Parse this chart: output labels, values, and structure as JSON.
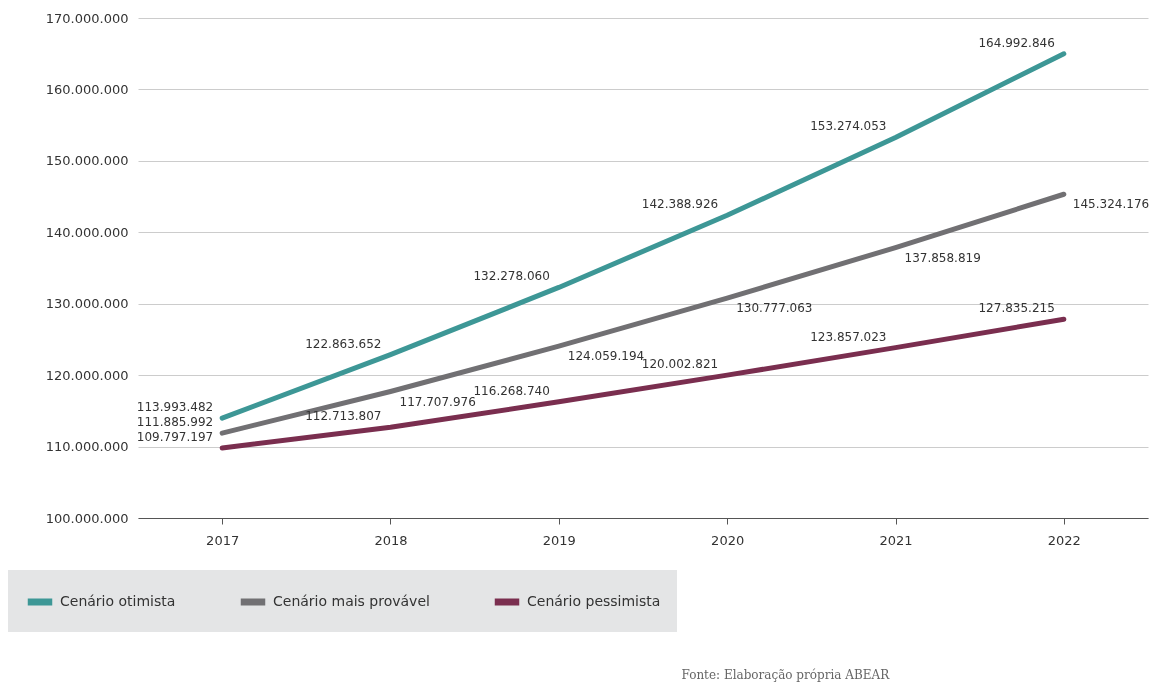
{
  "chart_data": {
    "type": "line",
    "categories": [
      "2017",
      "2018",
      "2019",
      "2020",
      "2021",
      "2022"
    ],
    "series": [
      {
        "name": "Cenário otimista",
        "color": "#3d9796",
        "values": [
          113993482,
          122863652,
          132278060,
          142388926,
          153274053,
          164992846
        ],
        "value_labels": [
          "113.993.482",
          "122.863.652",
          "132.278.060",
          "142.388.926",
          "153.274.053",
          "164.992.846"
        ]
      },
      {
        "name": "Cenário mais provável",
        "color": "#717073",
        "values": [
          111885992,
          117707976,
          124059194,
          130777063,
          137858819,
          145324176
        ],
        "value_labels": [
          "111.885.992",
          "117.707.976",
          "124.059.194",
          "130.777.063",
          "137.858.819",
          "145.324.176"
        ]
      },
      {
        "name": "Cenário pessimista",
        "color": "#7a2e4f",
        "values": [
          109797197,
          112713807,
          116268740,
          120002821,
          123857023,
          127835215
        ],
        "value_labels": [
          "109.797.197",
          "112.713.807",
          "116.268.740",
          "120.002.821",
          "123.857.023",
          "127.835.215"
        ]
      }
    ],
    "ylim": [
      100000000,
      170000000
    ],
    "yticks": [
      {
        "value": 100000000,
        "label": "100.000.000"
      },
      {
        "value": 110000000,
        "label": "110.000.000"
      },
      {
        "value": 120000000,
        "label": "120.000.000"
      },
      {
        "value": 130000000,
        "label": "130.000.000"
      },
      {
        "value": 140000000,
        "label": "140.000.000"
      },
      {
        "value": 150000000,
        "label": "150.000.000"
      },
      {
        "value": 160000000,
        "label": "160.000.000"
      },
      {
        "value": 170000000,
        "label": "170.000.000"
      }
    ],
    "grid": "y",
    "legend": "bottom left",
    "marker": "none",
    "line_style": "solid",
    "annotations": [
      "Fonte: Elaboração própria ABEAR"
    ]
  }
}
